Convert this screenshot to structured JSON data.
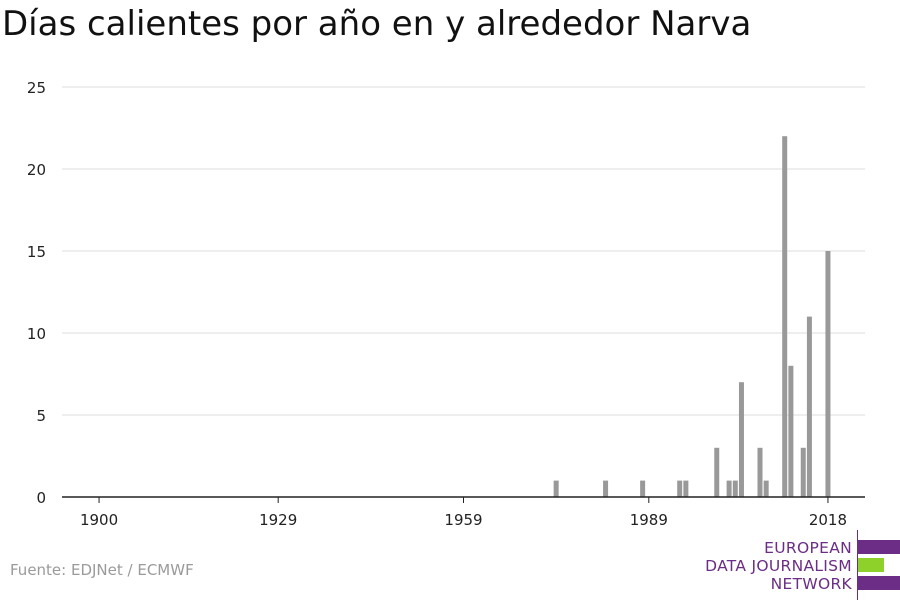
{
  "title": "Días calientes por año en y alrededor Narva",
  "source": "Fuente: EDJNet / ECMWF",
  "logo": {
    "lines": [
      "EUROPEAN",
      "DATA JOURNALISM",
      "NETWORK"
    ],
    "colors": {
      "purple": "#6b2d86",
      "green": "#8fd12b"
    }
  },
  "chart_data": {
    "type": "bar",
    "title": "Días calientes por año en y alrededor Narva",
    "xlabel": "",
    "ylabel": "",
    "xlim": [
      1894,
      2024
    ],
    "ylim": [
      0,
      25
    ],
    "x_ticks": [
      1900,
      1929,
      1959,
      1989,
      2018
    ],
    "y_ticks": [
      0,
      5,
      10,
      15,
      20,
      25
    ],
    "grid": true,
    "bar_color": "#999999",
    "x": [
      1974,
      1982,
      1988,
      1994,
      1995,
      2000,
      2002,
      2003,
      2004,
      2007,
      2008,
      2011,
      2012,
      2014,
      2015,
      2018
    ],
    "values": [
      1,
      1,
      1,
      1,
      1,
      3,
      1,
      1,
      7,
      3,
      1,
      22,
      8,
      3,
      11,
      15
    ]
  }
}
